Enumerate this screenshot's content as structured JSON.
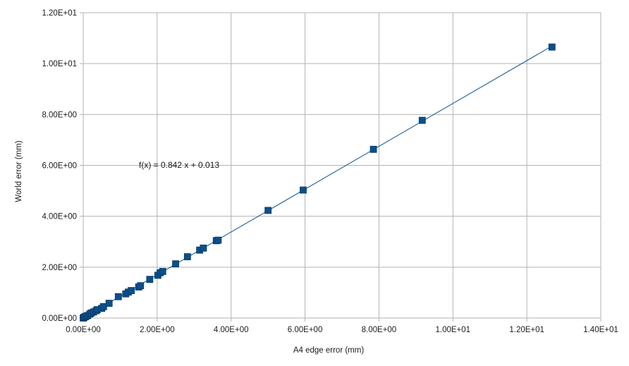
{
  "chart_data": {
    "type": "scatter",
    "title": "",
    "xlabel": "A4 edge error (mm)",
    "ylabel": "World error (mm)",
    "xlim": [
      0,
      14
    ],
    "ylim": [
      0,
      12
    ],
    "grid": true,
    "x_ticks": [
      {
        "value": 0,
        "label": "0.00E+00"
      },
      {
        "value": 2,
        "label": "2.00E+00"
      },
      {
        "value": 4,
        "label": "4.00E+00"
      },
      {
        "value": 6,
        "label": "6.00E+00"
      },
      {
        "value": 8,
        "label": "8.00E+00"
      },
      {
        "value": 10,
        "label": "1.00E+01"
      },
      {
        "value": 12,
        "label": "1.20E+01"
      },
      {
        "value": 14,
        "label": "1.40E+01"
      }
    ],
    "y_ticks": [
      {
        "value": 0,
        "label": "0.00E+00"
      },
      {
        "value": 2,
        "label": "2.00E+00"
      },
      {
        "value": 4,
        "label": "4.00E+00"
      },
      {
        "value": 6,
        "label": "6.00E+00"
      },
      {
        "value": 8,
        "label": "8.00E+00"
      },
      {
        "value": 10,
        "label": "1.00E+01"
      },
      {
        "value": 12,
        "label": "1.20E+01"
      }
    ],
    "series": [
      {
        "color": "#0b4f8a",
        "marker": "square",
        "points": [
          [
            0.0,
            0.0
          ],
          [
            0.02,
            0.03
          ],
          [
            0.05,
            0.05
          ],
          [
            0.08,
            0.07
          ],
          [
            0.12,
            0.1
          ],
          [
            0.18,
            0.16
          ],
          [
            0.22,
            0.2
          ],
          [
            0.28,
            0.24
          ],
          [
            0.35,
            0.29
          ],
          [
            0.38,
            0.33
          ],
          [
            0.5,
            0.38
          ],
          [
            0.55,
            0.45
          ],
          [
            0.7,
            0.58
          ],
          [
            0.95,
            0.84
          ],
          [
            1.15,
            0.95
          ],
          [
            1.22,
            1.02
          ],
          [
            1.3,
            1.08
          ],
          [
            1.5,
            1.22
          ],
          [
            1.55,
            1.27
          ],
          [
            1.8,
            1.52
          ],
          [
            2.02,
            1.68
          ],
          [
            2.08,
            1.78
          ],
          [
            2.15,
            1.83
          ],
          [
            2.5,
            2.13
          ],
          [
            2.82,
            2.41
          ],
          [
            3.15,
            2.67
          ],
          [
            3.25,
            2.75
          ],
          [
            3.6,
            3.04
          ],
          [
            3.65,
            3.06
          ],
          [
            5.0,
            4.23
          ],
          [
            5.95,
            5.03
          ],
          [
            7.85,
            6.63
          ],
          [
            9.17,
            7.77
          ],
          [
            12.68,
            10.65
          ]
        ]
      }
    ],
    "trendline": {
      "slope": 0.842,
      "intercept": 0.013,
      "x_range": [
        0,
        12.68
      ],
      "color": "#0b4f8a",
      "label": "f(x) = 0.842 x + 0.013"
    }
  }
}
